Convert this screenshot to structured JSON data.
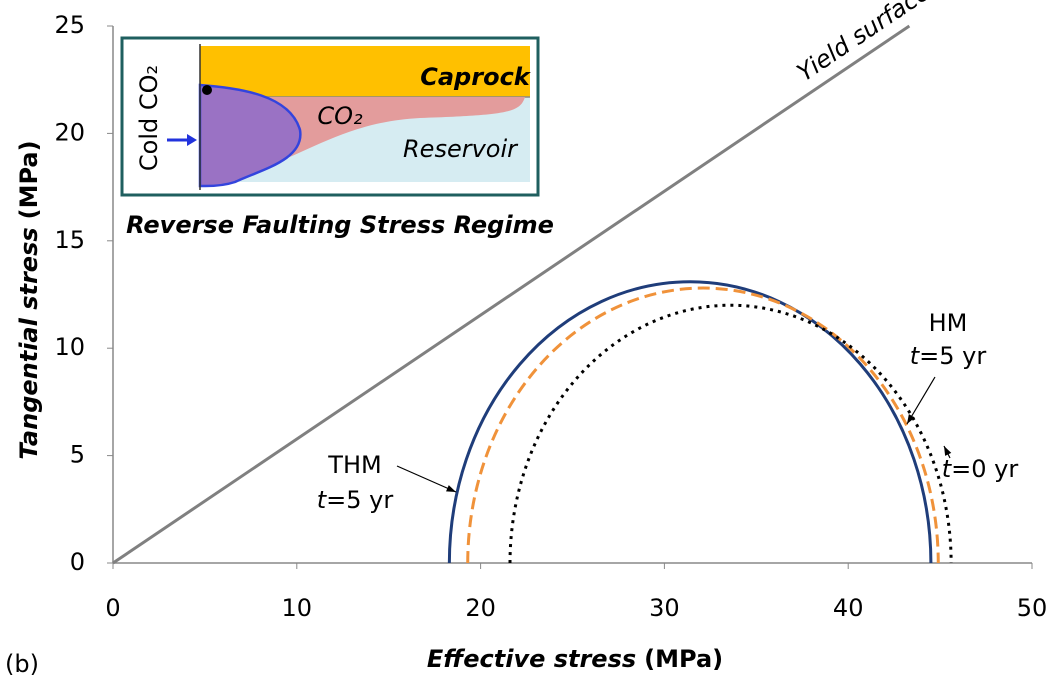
{
  "chart_data": {
    "type": "mohr",
    "panel_label": "(b)",
    "x_label": {
      "title": "Effective stress",
      "unit": "(MPa)"
    },
    "y_label": {
      "title": "Tangential stress",
      "unit": "(MPa)"
    },
    "xlim": [
      0,
      50
    ],
    "ylim": [
      0,
      25
    ],
    "xticks": [
      0,
      10,
      20,
      30,
      40,
      50
    ],
    "yticks": [
      0,
      5,
      10,
      15,
      20,
      25
    ],
    "yield_line": {
      "label": "Yield surface",
      "slope": 0.577,
      "color": "#808080"
    },
    "circles": [
      {
        "name": "THM",
        "var": "t",
        "time": "=5 yr",
        "center": 31.4,
        "radius": 13.1,
        "color": "#1f3d7a",
        "style": "solid"
      },
      {
        "name": "HM",
        "var": "t",
        "time": "=5 yr",
        "center": 32.1,
        "radius": 12.8,
        "color": "#f0923a",
        "style": "dashed"
      },
      {
        "var": "t",
        "time": "=0 yr",
        "center": 33.6,
        "radius": 12.0,
        "color": "#000000",
        "style": "dotted"
      }
    ],
    "inset": {
      "title": "Reverse Faulting Stress Regime",
      "caprock": "Caprock",
      "plume": "CO₂",
      "reservoir": "Reservoir",
      "injection": "Cold CO₂"
    }
  }
}
